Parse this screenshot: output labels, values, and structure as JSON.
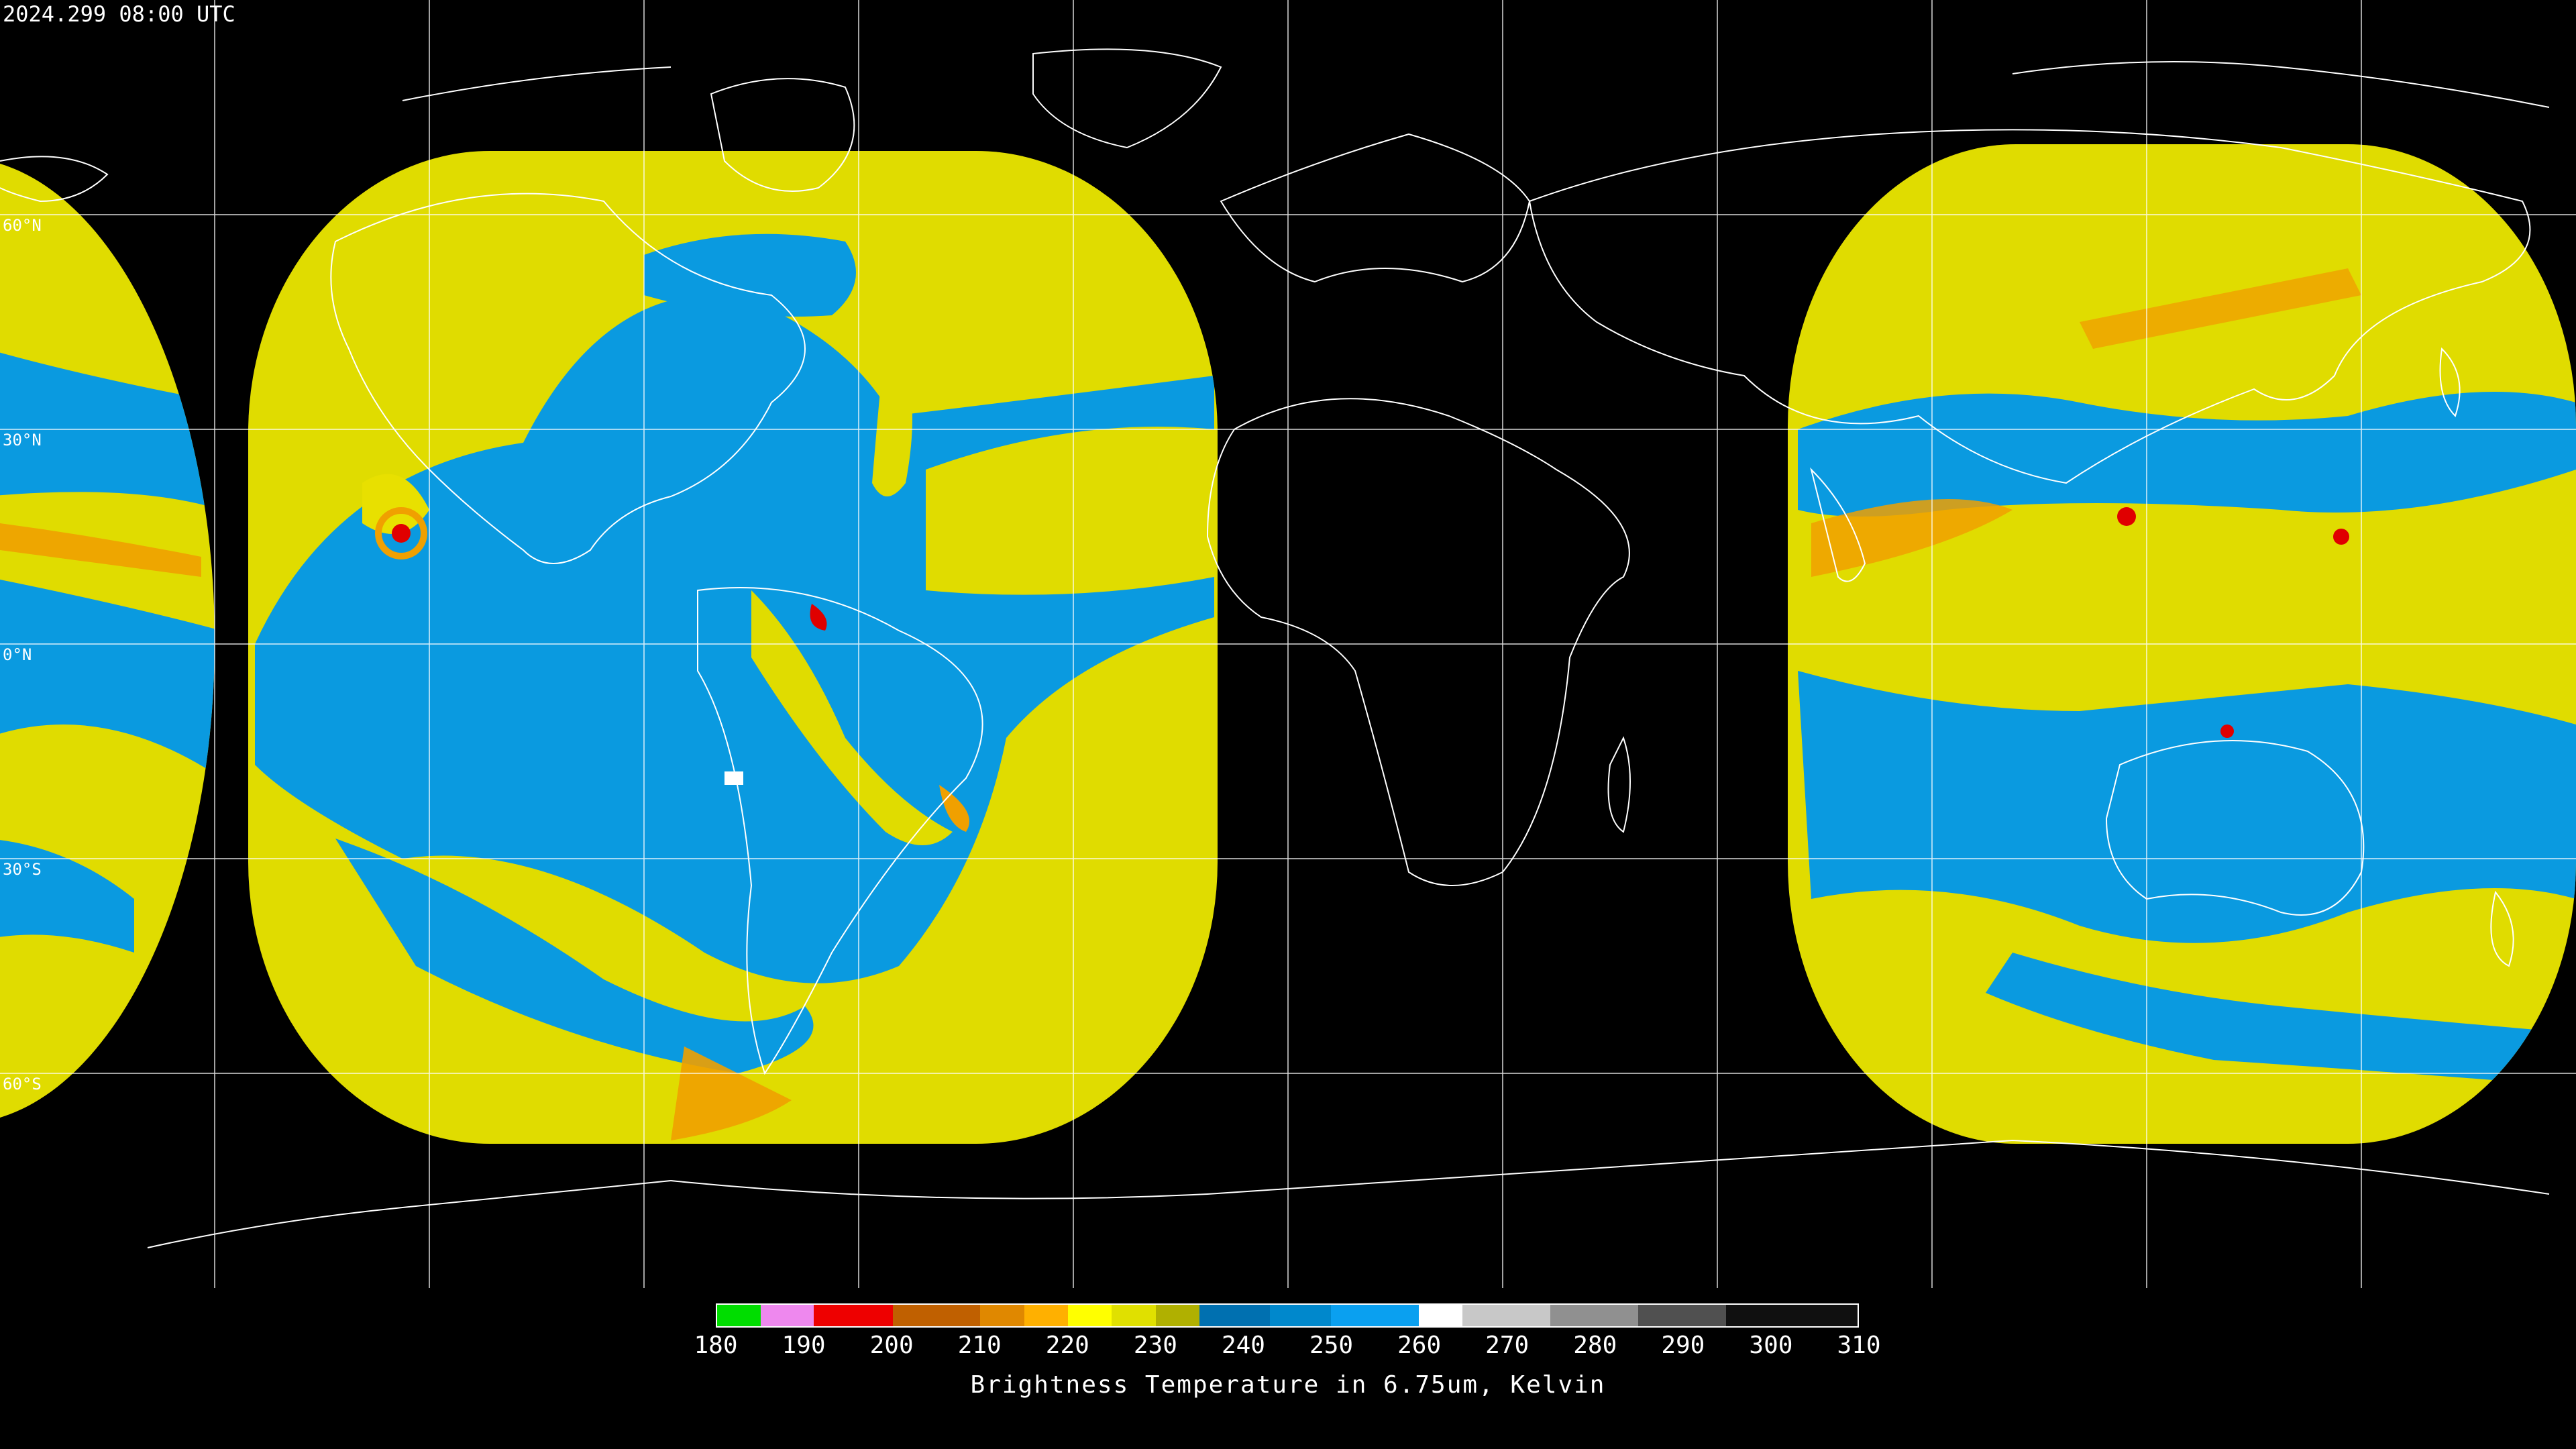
{
  "header": {
    "timestamp": "2024.299 08:00 UTC"
  },
  "map": {
    "projection": "equirectangular",
    "lat_labels": [
      "60°N",
      "30°N",
      "0°N",
      "30°S",
      "60°S"
    ],
    "colors": {
      "background": "#000000",
      "gridline": "#ffffff",
      "coastline": "#ffffff",
      "moist": "#0a9ae0",
      "dry": "#e8e000",
      "dry_dark": "#c8c000",
      "cold_cloud": "#f0a000",
      "very_cold_cloud": "#e00000"
    }
  },
  "colorbar": {
    "title": "Brightness Temperature in 6.75um, Kelvin",
    "ticks": [
      "180",
      "190",
      "200",
      "210",
      "220",
      "230",
      "240",
      "250",
      "260",
      "270",
      "280",
      "290",
      "300",
      "310"
    ],
    "min": 180,
    "max": 310,
    "segments": [
      {
        "from": 180,
        "to": 185,
        "color": "#00dd00"
      },
      {
        "from": 185,
        "to": 191,
        "color": "#ee88ee"
      },
      {
        "from": 191,
        "to": 200,
        "color": "#ee0000"
      },
      {
        "from": 200,
        "to": 210,
        "color": "#c06000"
      },
      {
        "from": 210,
        "to": 215,
        "color": "#e08800"
      },
      {
        "from": 215,
        "to": 220,
        "color": "#ffb000"
      },
      {
        "from": 220,
        "to": 225,
        "color": "#ffff00"
      },
      {
        "from": 225,
        "to": 230,
        "color": "#e0e000"
      },
      {
        "from": 230,
        "to": 235,
        "color": "#b0b000"
      },
      {
        "from": 235,
        "to": 243,
        "color": "#0070b0"
      },
      {
        "from": 243,
        "to": 250,
        "color": "#0088cc"
      },
      {
        "from": 250,
        "to": 260,
        "color": "#0aa0f0"
      },
      {
        "from": 260,
        "to": 265,
        "color": "#ffffff"
      },
      {
        "from": 265,
        "to": 275,
        "color": "#c8c8c8"
      },
      {
        "from": 275,
        "to": 285,
        "color": "#909090"
      },
      {
        "from": 285,
        "to": 295,
        "color": "#505050"
      },
      {
        "from": 295,
        "to": 310,
        "color": "#101010"
      }
    ]
  }
}
